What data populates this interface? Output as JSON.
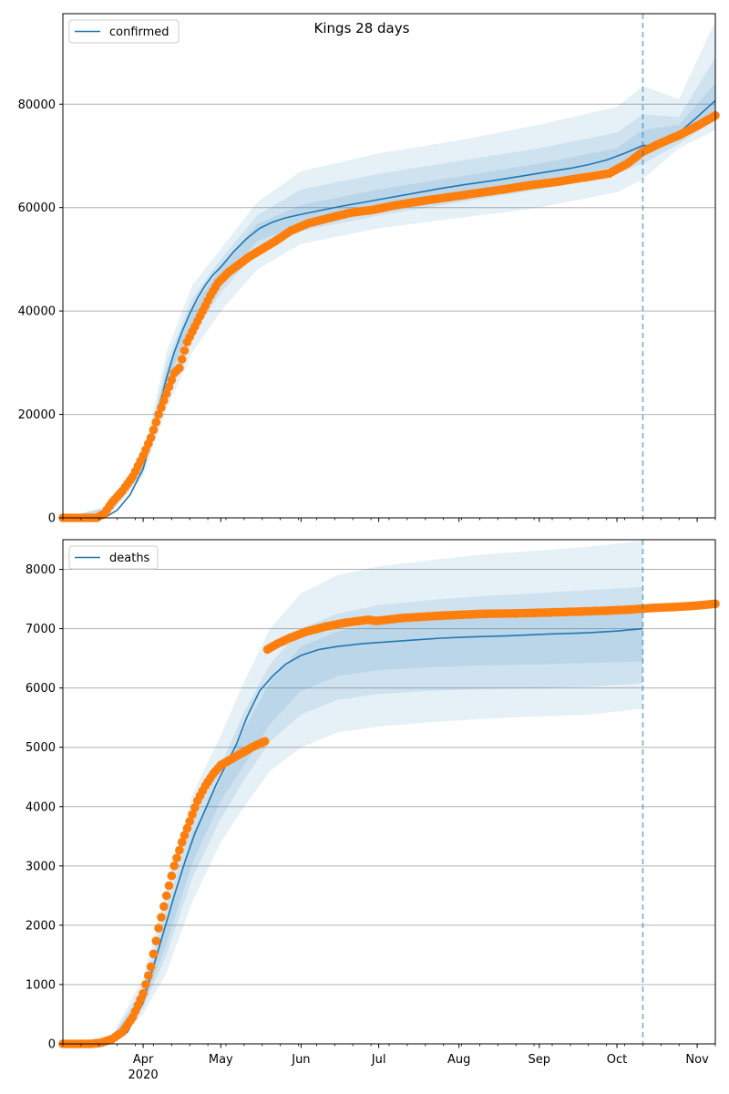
{
  "chart_data": {
    "title": "Kings 28 days",
    "type": "line",
    "x_axis": {
      "type": "date",
      "range": [
        "2020-03-01",
        "2020-11-08"
      ],
      "tick_labels": [
        {
          "date": "2020-04-01",
          "label": "Apr",
          "sublabel": "2020"
        },
        {
          "date": "2020-05-01",
          "label": "May"
        },
        {
          "date": "2020-06-01",
          "label": "Jun"
        },
        {
          "date": "2020-07-01",
          "label": "Jul"
        },
        {
          "date": "2020-08-01",
          "label": "Aug"
        },
        {
          "date": "2020-09-01",
          "label": "Sep"
        },
        {
          "date": "2020-10-01",
          "label": "Oct"
        },
        {
          "date": "2020-11-01",
          "label": "Nov"
        }
      ]
    },
    "forecast_start": "2020-10-11",
    "colors": {
      "model": "#1f77b4",
      "observed": "#ff7f0e",
      "band": "#1f77b4",
      "grid": "#b0b0b0"
    },
    "panels": [
      {
        "legend": "confirmed",
        "legend_position": "top-left",
        "ylim": [
          0,
          97500
        ],
        "yticks": [
          0,
          20000,
          40000,
          60000,
          80000
        ],
        "grid": "horizontal",
        "model_line": {
          "x": [
            "2020-03-01",
            "2020-03-12",
            "2020-03-17",
            "2020-03-22",
            "2020-03-27",
            "2020-04-01",
            "2020-04-04",
            "2020-04-07",
            "2020-04-10",
            "2020-04-13",
            "2020-04-16",
            "2020-04-19",
            "2020-04-22",
            "2020-04-25",
            "2020-04-28",
            "2020-05-01",
            "2020-05-06",
            "2020-05-11",
            "2020-05-16",
            "2020-05-21",
            "2020-05-26",
            "2020-06-01",
            "2020-06-09",
            "2020-06-17",
            "2020-06-25",
            "2020-07-05",
            "2020-07-15",
            "2020-07-25",
            "2020-08-04",
            "2020-08-14",
            "2020-08-24",
            "2020-09-03",
            "2020-09-13",
            "2020-09-20",
            "2020-09-27",
            "2020-10-04",
            "2020-10-11",
            "2020-10-18",
            "2020-10-25",
            "2020-11-01",
            "2020-11-08"
          ],
          "y": [
            0,
            0,
            0,
            1500,
            4500,
            9500,
            15000,
            21000,
            27000,
            32000,
            36000,
            39500,
            42500,
            45000,
            47000,
            48500,
            51500,
            54000,
            56000,
            57200,
            58000,
            58700,
            59500,
            60300,
            61000,
            61900,
            62800,
            63700,
            64500,
            65200,
            66000,
            66800,
            67600,
            68300,
            69200,
            70500,
            72000,
            72000,
            74500,
            77500,
            80700
          ]
        },
        "bands": [
          {
            "x": [
              "2020-03-01",
              "2020-03-20",
              "2020-04-01",
              "2020-04-10",
              "2020-04-20",
              "2020-05-01",
              "2020-05-15",
              "2020-06-01",
              "2020-07-01",
              "2020-08-01",
              "2020-09-01",
              "2020-10-01",
              "2020-10-11",
              "2020-10-25",
              "2020-11-08"
            ],
            "low": [
              0,
              1200,
              8000,
              21000,
              32000,
              40000,
              48000,
              53000,
              56000,
              58000,
              60000,
              63000,
              65500,
              71500,
              75000
            ],
            "high": [
              0,
              2500,
              12000,
              32000,
              45000,
              52000,
              61000,
              67000,
              70500,
              73000,
              76000,
              79500,
              83500,
              81000,
              96000
            ]
          },
          {
            "x": [
              "2020-03-01",
              "2020-03-20",
              "2020-04-01",
              "2020-04-10",
              "2020-04-20",
              "2020-05-01",
              "2020-05-15",
              "2020-06-01",
              "2020-07-01",
              "2020-08-01",
              "2020-09-01",
              "2020-10-01",
              "2020-10-11",
              "2020-10-25",
              "2020-11-08"
            ],
            "low": [
              0,
              1400,
              8700,
              24000,
              35500,
              43500,
              51500,
              55500,
              58500,
              61000,
              63500,
              66500,
              68500,
              72300,
              77000
            ],
            "high": [
              0,
              2200,
              11000,
              30000,
              42500,
              50000,
              58500,
              63500,
              66500,
              69000,
              71500,
              74500,
              78000,
              77500,
              89000
            ]
          },
          {
            "x": [
              "2020-03-01",
              "2020-03-20",
              "2020-04-01",
              "2020-04-10",
              "2020-04-20",
              "2020-05-01",
              "2020-05-15",
              "2020-06-01",
              "2020-07-01",
              "2020-08-01",
              "2020-09-01",
              "2020-10-01",
              "2020-10-11",
              "2020-10-25",
              "2020-11-08"
            ],
            "low": [
              0,
              1600,
              9200,
              26000,
              37500,
              45500,
              53500,
              56800,
              59800,
              62300,
              65000,
              68000,
              70500,
              73000,
              78500
            ],
            "high": [
              0,
              2000,
              10300,
              28500,
              40500,
              48500,
              56800,
              60500,
              63500,
              66000,
              68500,
              71500,
              75000,
              76000,
              84000
            ]
          }
        ],
        "observed": {
          "x": [
            "2020-03-01",
            "2020-03-14",
            "2020-03-17",
            "2020-03-20",
            "2020-03-24",
            "2020-03-28",
            "2020-04-01",
            "2020-04-04",
            "2020-04-07",
            "2020-04-10",
            "2020-04-13",
            "2020-04-15",
            "2020-04-18",
            "2020-04-21",
            "2020-04-24",
            "2020-04-27",
            "2020-04-30",
            "2020-05-04",
            "2020-05-08",
            "2020-05-12",
            "2020-05-17",
            "2020-05-22",
            "2020-05-28",
            "2020-06-04",
            "2020-06-12",
            "2020-06-20",
            "2020-06-28",
            "2020-07-08",
            "2020-07-18",
            "2020-07-28",
            "2020-08-08",
            "2020-08-18",
            "2020-08-28",
            "2020-09-08",
            "2020-09-18",
            "2020-09-28",
            "2020-10-05",
            "2020-10-11",
            "2020-10-18",
            "2020-10-25",
            "2020-11-01",
            "2020-11-08"
          ],
          "y": [
            0,
            0,
            800,
            3000,
            5200,
            8000,
            12000,
            15500,
            20000,
            24000,
            28000,
            29000,
            34000,
            37000,
            40000,
            43000,
            45500,
            47500,
            49000,
            50500,
            52000,
            53500,
            55500,
            57000,
            58000,
            59000,
            59500,
            60500,
            61300,
            62000,
            62800,
            63500,
            64300,
            65000,
            65800,
            66600,
            68500,
            70800,
            72500,
            74000,
            75800,
            77800
          ]
        }
      },
      {
        "legend": "deaths",
        "legend_position": "top-left",
        "ylim": [
          0,
          8500
        ],
        "yticks": [
          0,
          1000,
          2000,
          3000,
          4000,
          5000,
          6000,
          7000,
          8000
        ],
        "grid": "horizontal",
        "model_line": {
          "x": [
            "2020-03-01",
            "2020-03-14",
            "2020-03-20",
            "2020-03-26",
            "2020-04-01",
            "2020-04-05",
            "2020-04-09",
            "2020-04-13",
            "2020-04-17",
            "2020-04-21",
            "2020-04-25",
            "2020-04-29",
            "2020-05-03",
            "2020-05-07",
            "2020-05-11",
            "2020-05-16",
            "2020-05-21",
            "2020-05-26",
            "2020-06-01",
            "2020-06-08",
            "2020-06-15",
            "2020-06-25",
            "2020-07-05",
            "2020-07-15",
            "2020-07-25",
            "2020-08-05",
            "2020-08-20",
            "2020-09-05",
            "2020-09-20",
            "2020-10-01",
            "2020-10-11"
          ],
          "y": [
            0,
            0,
            50,
            200,
            700,
            1300,
            1900,
            2500,
            3050,
            3550,
            3950,
            4350,
            4700,
            5050,
            5500,
            5950,
            6200,
            6400,
            6550,
            6650,
            6700,
            6750,
            6780,
            6810,
            6840,
            6860,
            6880,
            6910,
            6930,
            6960,
            7000
          ]
        },
        "bands": [
          {
            "x": [
              "2020-03-01",
              "2020-03-20",
              "2020-04-01",
              "2020-04-10",
              "2020-04-20",
              "2020-05-01",
              "2020-05-10",
              "2020-05-20",
              "2020-06-01",
              "2020-06-15",
              "2020-07-01",
              "2020-07-20",
              "2020-08-10",
              "2020-09-01",
              "2020-09-20",
              "2020-10-11"
            ],
            "low": [
              0,
              30,
              500,
              1200,
              2400,
              3400,
              4000,
              4600,
              5000,
              5250,
              5350,
              5420,
              5480,
              5520,
              5550,
              5650
            ],
            "high": [
              0,
              150,
              1100,
              2600,
              4200,
              5200,
              6100,
              7000,
              7600,
              7900,
              8050,
              8150,
              8250,
              8320,
              8380,
              8480
            ]
          },
          {
            "x": [
              "2020-03-01",
              "2020-03-20",
              "2020-04-01",
              "2020-04-10",
              "2020-04-20",
              "2020-05-01",
              "2020-05-10",
              "2020-05-20",
              "2020-06-01",
              "2020-06-15",
              "2020-07-01",
              "2020-07-20",
              "2020-08-10",
              "2020-09-01",
              "2020-09-20",
              "2020-10-11"
            ],
            "low": [
              0,
              40,
              600,
              1500,
              2800,
              3800,
              4450,
              5100,
              5550,
              5800,
              5900,
              5950,
              5980,
              6000,
              6020,
              6080
            ],
            "high": [
              0,
              120,
              950,
              2300,
              3800,
              4700,
              5600,
              6400,
              7000,
              7250,
              7400,
              7480,
              7550,
              7600,
              7650,
              7700
            ]
          },
          {
            "x": [
              "2020-03-01",
              "2020-03-20",
              "2020-04-01",
              "2020-04-10",
              "2020-04-20",
              "2020-05-01",
              "2020-05-10",
              "2020-05-20",
              "2020-06-01",
              "2020-06-15",
              "2020-07-01",
              "2020-07-20",
              "2020-08-10",
              "2020-09-01",
              "2020-09-20",
              "2020-10-11"
            ],
            "low": [
              0,
              45,
              650,
              1700,
              3050,
              4100,
              4700,
              5400,
              5950,
              6200,
              6300,
              6350,
              6380,
              6400,
              6420,
              6450
            ],
            "high": [
              0,
              100,
              850,
              2100,
              3550,
              4450,
              5300,
              6100,
              6700,
              6950,
              7100,
              7180,
              7250,
              7300,
              7350,
              7400
            ]
          }
        ],
        "observed": {
          "x": [
            "2020-03-01",
            "2020-03-12",
            "2020-03-16",
            "2020-03-20",
            "2020-03-24",
            "2020-03-28",
            "2020-04-01",
            "2020-04-04",
            "2020-04-07",
            "2020-04-10",
            "2020-04-13",
            "2020-04-16",
            "2020-04-19",
            "2020-04-22",
            "2020-04-25",
            "2020-04-28",
            "2020-05-01",
            "2020-05-05",
            "2020-05-09",
            "2020-05-13",
            "2020-05-18",
            "2020-05-19",
            "2020-05-23",
            "2020-05-28",
            "2020-06-03",
            "2020-06-10",
            "2020-06-18",
            "2020-06-27",
            "2020-06-30",
            "2020-07-10",
            "2020-07-25",
            "2020-08-10",
            "2020-08-25",
            "2020-09-10",
            "2020-09-25",
            "2020-10-05",
            "2020-10-15",
            "2020-10-25",
            "2020-11-01",
            "2020-11-08"
          ],
          "y": [
            0,
            0,
            20,
            80,
            200,
            450,
            850,
            1300,
            1950,
            2500,
            3000,
            3400,
            3750,
            4100,
            4350,
            4550,
            4700,
            4800,
            4900,
            5000,
            5100,
            6650,
            6750,
            6850,
            6950,
            7030,
            7100,
            7150,
            7130,
            7180,
            7220,
            7250,
            7260,
            7280,
            7300,
            7320,
            7350,
            7370,
            7390,
            7420
          ]
        }
      }
    ]
  }
}
